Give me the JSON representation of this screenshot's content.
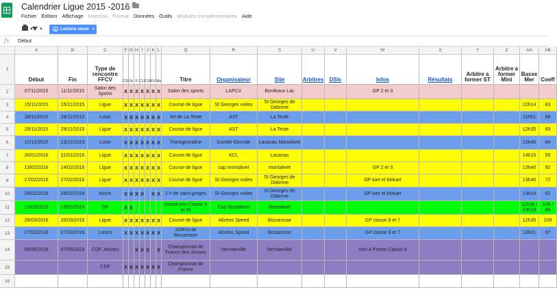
{
  "title": "Calendrier Ligue 2015 -2016",
  "menu": [
    {
      "label": "Fichier",
      "disabled": false
    },
    {
      "label": "Édition",
      "disabled": false
    },
    {
      "label": "Affichage",
      "disabled": false
    },
    {
      "label": "Insertion",
      "disabled": true
    },
    {
      "label": "Format",
      "disabled": true
    },
    {
      "label": "Données",
      "disabled": false
    },
    {
      "label": "Outils",
      "disabled": false
    },
    {
      "label": "Modules complémentaires",
      "disabled": true
    },
    {
      "label": "Aide",
      "disabled": false
    }
  ],
  "toolbar": {
    "readonly_label": "Lecture seule",
    "readonly_color": "#4d90fe"
  },
  "formula": {
    "icon": "fx",
    "value": "Début"
  },
  "columns": [
    "A",
    "B",
    "C",
    "F",
    "G",
    "H",
    "I",
    "J",
    "K",
    "L",
    "Q",
    "R",
    "S",
    "U",
    "V",
    "W",
    "X",
    "Y",
    "Z",
    "AA",
    "AB"
  ],
  "header": [
    "Début",
    "Fin",
    "Type de rencontre FFCV",
    "C15",
    "St",
    "F",
    "C17",
    "C18",
    "KV",
    "Ma",
    "Titre",
    "Organisateur",
    "Site",
    "Arbitres",
    "DSIs",
    "Infos",
    "Résultats",
    "Arbitre a former ST",
    "Arbitre a former Mini",
    "Basse Mer",
    "Coeff"
  ],
  "colors": {
    "pink": "#f4cccc",
    "yellow": "#ffff00",
    "blue": "#6d9eeb",
    "green": "#00ff00",
    "purple": "#8e7cc3",
    "white": "#ffffff",
    "link": "#1155cc"
  },
  "rows": [
    {
      "num": "2",
      "color": "pink",
      "cells": [
        "07/11/2015",
        "11/11/2015",
        "Salon des Sports",
        "X",
        "X",
        "X",
        "X",
        "X",
        "X",
        "X",
        "Salon des sports",
        "LAPCV",
        "Bordeaux Lac",
        "",
        "",
        "GP 2 et 3",
        "",
        "",
        "",
        "",
        ""
      ]
    },
    {
      "num": "3",
      "color": "yellow",
      "cells": [
        "15/11/2015",
        "15/11/2015",
        "Ligue",
        "X",
        "X",
        "X",
        "X",
        "X",
        "X",
        "X",
        "Course de ligue",
        "St Georges voiles",
        "St Georges de Didonne",
        "",
        "",
        "",
        "",
        "",
        "",
        "12h14",
        "83"
      ]
    },
    {
      "num": "4",
      "color": "blue",
      "cells": [
        "28/11/2015",
        "28/11/2015",
        "Loisir",
        "X",
        "X",
        "X",
        "X",
        "X",
        "X",
        "X",
        "3H de La Teste",
        "AST",
        "La Teste",
        "",
        "",
        "",
        "",
        "",
        "",
        "11h51",
        "98"
      ]
    },
    {
      "num": "5",
      "color": "yellow",
      "cells": [
        "29/11/2015",
        "29/11/2015",
        "Ligue",
        "X",
        "X",
        "X",
        "X",
        "X",
        "X",
        "X",
        "Course de ligue",
        "AST",
        "La Teste",
        "",
        "",
        "",
        "",
        "",
        "",
        "12h35",
        "83"
      ]
    },
    {
      "num": "6",
      "color": "blue",
      "cells": [
        "12/12/2015",
        "13/12/2015",
        "Loisir",
        "X",
        "X",
        "X",
        "X",
        "X",
        "X",
        "X",
        "Transgirondine",
        "Comité Gironde",
        "Lacanau Montalivet",
        "",
        "",
        "",
        "",
        "",
        "",
        "12h40",
        "84"
      ]
    },
    {
      "num": "7",
      "color": "yellow",
      "cells": [
        "30/01/2016",
        "31/01/2016",
        "Ligue",
        "X",
        "X",
        "X",
        "X",
        "X",
        "X",
        "X",
        "Course de ligue",
        "KCL",
        "Lacanau",
        "",
        "",
        "",
        "",
        "",
        "",
        "14h15",
        "55"
      ]
    },
    {
      "num": "8",
      "color": "yellow",
      "cells": [
        "13/02/2016",
        "14/02/2016",
        "Ligue",
        "X",
        "X",
        "X",
        "X",
        "X",
        "X",
        "X",
        "Course de ligue",
        "cap montalivet",
        "montalivet",
        "",
        "",
        "GP 2 et 3",
        "",
        "",
        "",
        "13h40",
        "92"
      ]
    },
    {
      "num": "9",
      "color": "yellow",
      "cells": [
        "27/02/2016",
        "27/02/2016",
        "Ligue",
        "X",
        "X",
        "X",
        "X",
        "X",
        "X",
        "X",
        "Course de ligue",
        "St Georges voiles",
        "St Georges de Didonne",
        "",
        "",
        "GP kart et blokart",
        "",
        "",
        "",
        "13h40",
        "72"
      ]
    },
    {
      "num": "10",
      "color": "blue",
      "cells": [
        "28/02/2016",
        "28/02/2016",
        "loisirs",
        "X",
        "X",
        "X",
        "X",
        "",
        "X",
        "X",
        "2 h de saint-gorges",
        "St Georges voiles",
        "St Georges de Didonne",
        "",
        "",
        "GP kart et blokart",
        "",
        "",
        "",
        "14h14",
        "62"
      ]
    },
    {
      "num": "11",
      "color": "green",
      "cells": [
        "12/03/2016",
        "13/03/2016",
        "GP",
        "X",
        "X",
        "",
        "",
        "",
        "",
        "",
        "Grand-prix Classe 5 et St",
        "Cap Montalivet",
        "Montalivet",
        "",
        "",
        "",
        "",
        "",
        "",
        "12h35 / 13h19",
        "109 / 89"
      ]
    },
    {
      "num": "12",
      "color": "yellow",
      "cells": [
        "26/03/2016",
        "26/03/2016",
        "Ligue",
        "X",
        "X",
        "X",
        "X",
        "X",
        "X",
        "X",
        "Course de ligue",
        "Alizées Speed",
        "Biscarosse",
        "",
        "",
        "GP classe 8 et 7",
        "",
        "",
        "",
        "12h35",
        "109"
      ]
    },
    {
      "num": "13",
      "color": "blue",
      "cells": [
        "27/03/2016",
        "27/03/2016",
        "Loisirs",
        "X",
        "X",
        "X",
        "X",
        "X",
        "X",
        "X",
        "100Km de Biscarosse",
        "Alizées Speed",
        "Biscarosse",
        "",
        "",
        "GP classe 8 et 7",
        "",
        "",
        "",
        "13h21",
        "97"
      ]
    },
    {
      "num": "14",
      "color": "purple",
      "cells": [
        "05/05/2016",
        "07/05/2016",
        "CDF Jeunes",
        "",
        "",
        "X",
        "X",
        "X",
        "",
        "X",
        "Championnat de France des Jeunes",
        "hermanville",
        "hermanville",
        "",
        "",
        "mini 4 Promo Classe 8",
        "",
        "",
        "",
        "",
        ""
      ]
    },
    {
      "num": "15",
      "color": "purple",
      "cells": [
        "",
        "",
        "CDF",
        "X",
        "X",
        "X",
        "X",
        "X",
        "X",
        "X",
        "Championnat de France",
        "",
        "",
        "",
        "",
        "",
        "",
        "",
        "",
        "",
        ""
      ]
    },
    {
      "num": "16",
      "color": "white",
      "cells": [
        "",
        "",
        "",
        "",
        "",
        "",
        "",
        "",
        "",
        "",
        "",
        "",
        "",
        "",
        "",
        "",
        "",
        "",
        "",
        "",
        ""
      ]
    }
  ]
}
